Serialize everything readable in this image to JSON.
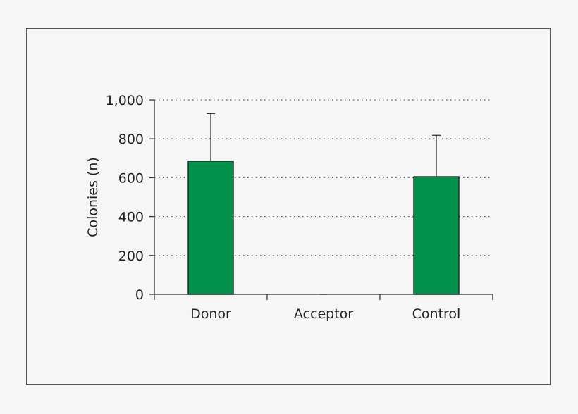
{
  "chart_data": {
    "type": "bar",
    "title": "",
    "xlabel": "",
    "ylabel": "Colonies (n)",
    "categories": [
      "Donor",
      "Acceptor",
      "Control"
    ],
    "values": [
      685,
      0,
      605
    ],
    "error_upper": [
      930,
      0,
      818
    ],
    "ylim": [
      0,
      1000
    ],
    "yticks": [
      0,
      200,
      400,
      600,
      800,
      1000
    ],
    "ytick_labels": [
      "0",
      "200",
      "400",
      "600",
      "800",
      "1,000"
    ],
    "grid": "horizontal-dotted",
    "colors": {
      "bar": "#00914a",
      "bar_edge": "#222222",
      "axis": "#333333",
      "grid": "#555555"
    }
  }
}
